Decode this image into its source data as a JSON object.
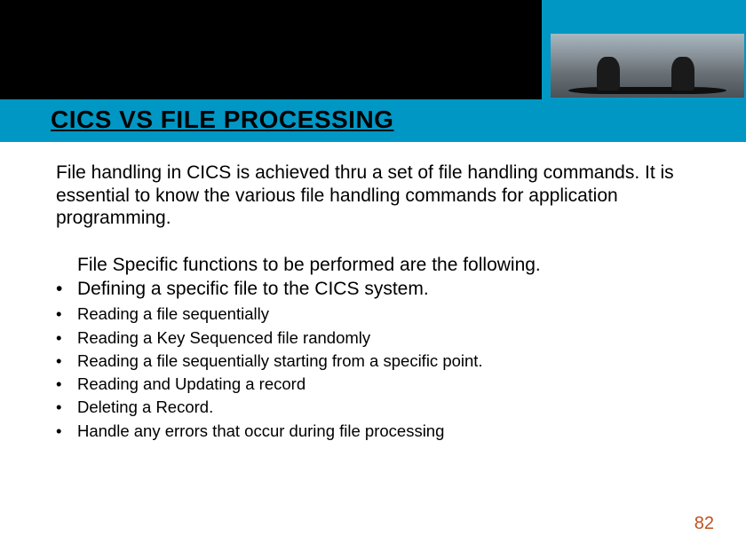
{
  "header": {
    "band_color": "#0097c4",
    "black_block_color": "#000000",
    "title": "CICS VS FILE PROCESSING"
  },
  "content": {
    "intro": "File handling in CICS is achieved thru a set of file handling commands. It is essential to know the various file handling commands for application programming.",
    "subhead": "File Specific functions to be  performed are the following.",
    "big_bullets": [
      "Defining a specific file to the CICS system."
    ],
    "small_bullets": [
      "Reading a file sequentially",
      "Reading a Key Sequenced file randomly",
      "Reading a file sequentially starting from a specific point.",
      "Reading and Updating a record",
      "Deleting a Record.",
      "Handle any errors that occur during file processing"
    ]
  },
  "page_number": "82",
  "colors": {
    "page_number_color": "#c05020",
    "text_color": "#000000",
    "background": "#ffffff"
  }
}
